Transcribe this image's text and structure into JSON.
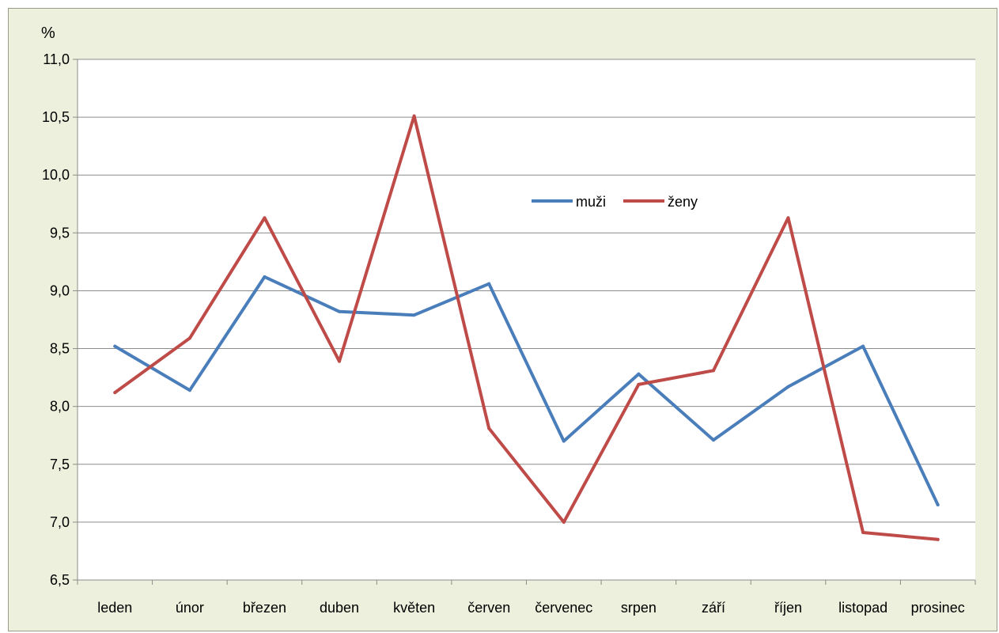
{
  "chart_data": {
    "type": "line",
    "unit_label": "%",
    "categories": [
      "leden",
      "únor",
      "březen",
      "duben",
      "květen",
      "červen",
      "červenec",
      "srpen",
      "září",
      "říjen",
      "listopad",
      "prosinec"
    ],
    "ylim": [
      6.5,
      11.0
    ],
    "ytick_values": [
      6.5,
      7.0,
      7.5,
      8.0,
      8.5,
      9.0,
      9.5,
      10.0,
      10.5,
      11.0
    ],
    "ytick_labels": [
      "6,5",
      "7,0",
      "7,5",
      "8,0",
      "8,5",
      "9,0",
      "9,5",
      "10,0",
      "10,5",
      "11,0"
    ],
    "grid": true,
    "legend_position": "center-right inside plot",
    "series": [
      {
        "name": "muži",
        "color": "#4a7ebb",
        "values": [
          8.52,
          8.14,
          9.12,
          8.82,
          8.79,
          9.06,
          7.7,
          8.28,
          7.71,
          8.17,
          8.52,
          7.15
        ]
      },
      {
        "name": "ženy",
        "color": "#be4b48",
        "values": [
          8.12,
          8.59,
          9.63,
          8.39,
          10.51,
          7.81,
          7.0,
          8.19,
          8.31,
          9.63,
          6.91,
          6.85
        ]
      }
    ]
  }
}
